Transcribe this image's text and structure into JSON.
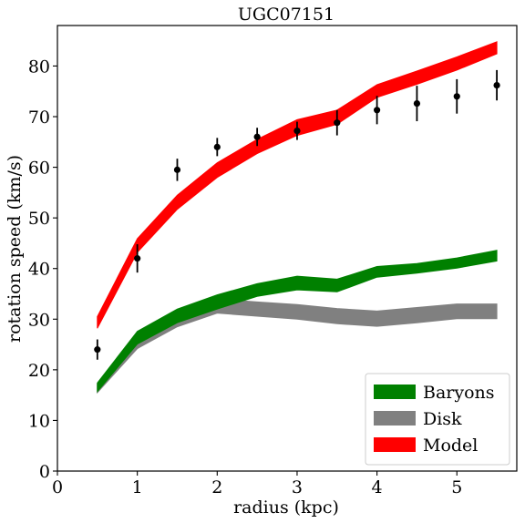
{
  "chart_data": {
    "type": "line",
    "title": "UGC07151",
    "xlabel": "radius (kpc)",
    "ylabel": "rotation speed (km/s)",
    "xlim": [
      0,
      5.75
    ],
    "ylim": [
      0,
      88
    ],
    "xticks": [
      0,
      1,
      2,
      3,
      4,
      5
    ],
    "yticks": [
      0,
      10,
      20,
      30,
      40,
      50,
      60,
      70,
      80
    ],
    "grid": false,
    "legend_position": "lower-right",
    "bands": [
      {
        "name": "Model",
        "color": "#ff0000",
        "x": [
          0.5,
          1.0,
          1.5,
          2.0,
          2.5,
          3.0,
          3.5,
          4.0,
          4.5,
          5.0,
          5.5
        ],
        "lower": [
          28.2,
          43.2,
          51.7,
          58.0,
          62.7,
          66.3,
          68.5,
          73.8,
          76.4,
          79.2,
          82.4
        ],
        "upper": [
          30.5,
          45.9,
          54.5,
          60.9,
          65.5,
          69.4,
          71.3,
          76.3,
          79.0,
          81.8,
          84.8
        ]
      },
      {
        "name": "Disk",
        "color": "#808080",
        "x": [
          0.5,
          1.0,
          1.5,
          2.0,
          2.5,
          3.0,
          3.5,
          4.0,
          4.5,
          5.0,
          5.5
        ],
        "lower": [
          15.5,
          24.2,
          28.5,
          31.2,
          30.6,
          30.0,
          29.1,
          28.6,
          29.3,
          30.1,
          30.1
        ],
        "upper": [
          17.2,
          26.3,
          30.8,
          34.0,
          33.4,
          32.9,
          32.1,
          31.6,
          32.3,
          33.0,
          33.0
        ]
      },
      {
        "name": "Baryons",
        "color": "#008000",
        "x": [
          0.5,
          1.0,
          1.5,
          2.0,
          2.5,
          3.0,
          3.5,
          4.0,
          4.5,
          5.0,
          5.5
        ],
        "lower": [
          15.7,
          25.1,
          29.3,
          32.0,
          34.5,
          35.8,
          35.4,
          38.3,
          39.1,
          40.1,
          41.5
        ],
        "upper": [
          17.4,
          27.6,
          32.0,
          34.8,
          37.0,
          38.5,
          37.9,
          40.4,
          41.0,
          42.1,
          43.6
        ]
      }
    ],
    "observed": {
      "color": "#000000",
      "x": [
        0.5,
        1.0,
        1.5,
        2.0,
        2.5,
        3.0,
        3.5,
        4.0,
        4.5,
        5.0,
        5.5
      ],
      "y": [
        24.0,
        42.0,
        59.5,
        64.0,
        66.0,
        67.2,
        68.8,
        71.3,
        72.6,
        74.0,
        76.2
      ],
      "err": [
        2.0,
        2.8,
        2.2,
        1.8,
        1.8,
        1.8,
        2.5,
        2.8,
        3.5,
        3.4,
        3.0
      ]
    },
    "legend": [
      {
        "label": "Baryons",
        "color": "#008000"
      },
      {
        "label": "Disk",
        "color": "#808080"
      },
      {
        "label": "Model",
        "color": "#ff0000"
      }
    ]
  }
}
